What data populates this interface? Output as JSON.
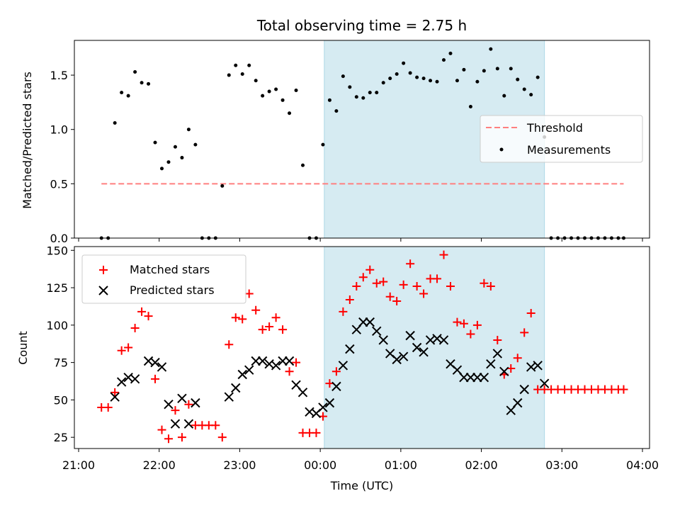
{
  "title": "Total observing time = 2.75 h",
  "xlabel": "Time (UTC)",
  "x_ticks": [
    "21:00",
    "22:00",
    "23:00",
    "00:00",
    "01:00",
    "02:00",
    "03:00",
    "04:00"
  ],
  "colors": {
    "threshold": "#ff7f7f",
    "measurement": "#000000",
    "matched": "#ff0000",
    "predicted": "#000000",
    "shade": "#add8e6"
  },
  "chart_data": [
    {
      "type": "scatter",
      "ylabel": "Matched/Predicted stars",
      "ylim": [
        0,
        1.82
      ],
      "y_ticks": [
        "0.0",
        "0.5",
        "1.0",
        "1.5"
      ],
      "legend": {
        "placement": "center-right",
        "entries": [
          "Threshold",
          "Measurements"
        ]
      },
      "shaded_interval": [
        "00:03",
        "02:47"
      ],
      "threshold": {
        "y": 0.5,
        "x_start": "21:17",
        "x_end": "03:46"
      },
      "series": [
        {
          "name": "Measurements",
          "x": [
            "21:17",
            "21:22",
            "21:27",
            "21:32",
            "21:37",
            "21:42",
            "21:47",
            "21:52",
            "21:57",
            "22:02",
            "22:07",
            "22:12",
            "22:17",
            "22:22",
            "22:27",
            "22:32",
            "22:37",
            "22:42",
            "22:47",
            "22:52",
            "22:57",
            "23:02",
            "23:07",
            "23:12",
            "23:17",
            "23:22",
            "23:27",
            "23:32",
            "23:37",
            "23:42",
            "23:47",
            "23:52",
            "23:57",
            "00:02",
            "00:07",
            "00:12",
            "00:17",
            "00:22",
            "00:27",
            "00:32",
            "00:37",
            "00:42",
            "00:47",
            "00:52",
            "00:57",
            "01:02",
            "01:07",
            "01:12",
            "01:17",
            "01:22",
            "01:27",
            "01:32",
            "01:37",
            "01:42",
            "01:47",
            "01:52",
            "01:57",
            "02:02",
            "02:07",
            "02:12",
            "02:17",
            "02:22",
            "02:27",
            "02:32",
            "02:37",
            "02:42",
            "02:47",
            "02:52",
            "02:57",
            "03:02",
            "03:07",
            "03:12",
            "03:17",
            "03:22",
            "03:27",
            "03:32",
            "03:37",
            "03:42",
            "03:46"
          ],
          "y": [
            0,
            0,
            1.06,
            1.34,
            1.31,
            1.53,
            1.43,
            1.42,
            0.88,
            0.64,
            0.7,
            0.84,
            0.74,
            1.0,
            0.86,
            0,
            0,
            0,
            0.48,
            1.5,
            1.59,
            1.51,
            1.59,
            1.45,
            1.31,
            1.35,
            1.37,
            1.27,
            1.15,
            1.36,
            0.67,
            0,
            0,
            0.86,
            1.27,
            1.17,
            1.49,
            1.39,
            1.3,
            1.29,
            1.34,
            1.34,
            1.43,
            1.47,
            1.51,
            1.61,
            1.52,
            1.48,
            1.47,
            1.45,
            1.44,
            1.64,
            1.7,
            1.45,
            1.55,
            1.21,
            1.44,
            1.54,
            1.74,
            1.56,
            1.31,
            1.56,
            1.46,
            1.37,
            1.32,
            1.48,
            0.93,
            0,
            0,
            0,
            0,
            0,
            0,
            0,
            0,
            0,
            0,
            0,
            0
          ]
        }
      ]
    },
    {
      "type": "scatter",
      "ylabel": "Count",
      "ylim": [
        17.5,
        152.5
      ],
      "y_ticks": [
        "25",
        "50",
        "75",
        "100",
        "125",
        "150"
      ],
      "legend": {
        "placement": "top-left",
        "entries": [
          "Matched stars",
          "Predicted stars"
        ]
      },
      "shaded_interval": [
        "00:03",
        "02:47"
      ],
      "series": [
        {
          "name": "Matched stars",
          "x": [
            "21:17",
            "21:22",
            "21:27",
            "21:32",
            "21:37",
            "21:42",
            "21:47",
            "21:52",
            "21:57",
            "22:02",
            "22:07",
            "22:12",
            "22:17",
            "22:22",
            "22:27",
            "22:32",
            "22:37",
            "22:42",
            "22:47",
            "22:52",
            "22:57",
            "23:02",
            "23:07",
            "23:12",
            "23:17",
            "23:22",
            "23:27",
            "23:32",
            "23:37",
            "23:42",
            "23:47",
            "23:52",
            "23:57",
            "00:02",
            "00:07",
            "00:12",
            "00:17",
            "00:22",
            "00:27",
            "00:32",
            "00:37",
            "00:42",
            "00:47",
            "00:52",
            "00:57",
            "01:02",
            "01:07",
            "01:12",
            "01:17",
            "01:22",
            "01:27",
            "01:32",
            "01:37",
            "01:42",
            "01:47",
            "01:52",
            "01:57",
            "02:02",
            "02:07",
            "02:12",
            "02:17",
            "02:22",
            "02:27",
            "02:32",
            "02:37",
            "02:42",
            "02:47",
            "02:52",
            "02:57",
            "03:02",
            "03:07",
            "03:12",
            "03:17",
            "03:22",
            "03:27",
            "03:32",
            "03:37",
            "03:42",
            "03:46"
          ],
          "y": [
            45,
            45,
            55,
            83,
            85,
            98,
            109,
            106,
            64,
            30,
            24,
            43,
            25,
            47,
            33,
            33,
            33,
            33,
            25,
            87,
            105,
            104,
            121,
            110,
            97,
            99,
            105,
            97,
            69,
            75,
            28,
            28,
            28,
            39,
            61,
            69,
            109,
            117,
            126,
            132,
            137,
            128,
            129,
            119,
            116,
            127,
            141,
            126,
            121,
            131,
            131,
            147,
            126,
            102,
            101,
            94,
            100,
            128,
            126,
            90,
            67,
            71,
            78,
            95,
            108,
            57,
            57,
            57,
            57,
            57,
            57,
            57,
            57,
            57,
            57,
            57,
            57,
            57,
            57
          ]
        },
        {
          "name": "Predicted stars",
          "x": [
            "21:27",
            "21:32",
            "21:37",
            "21:42",
            "21:52",
            "21:57",
            "22:02",
            "22:07",
            "22:12",
            "22:17",
            "22:22",
            "22:27",
            "22:52",
            "22:57",
            "23:02",
            "23:07",
            "23:12",
            "23:17",
            "23:22",
            "23:27",
            "23:32",
            "23:37",
            "23:42",
            "23:47",
            "23:52",
            "23:57",
            "00:02",
            "00:07",
            "00:12",
            "00:17",
            "00:22",
            "00:27",
            "00:32",
            "00:37",
            "00:42",
            "00:47",
            "00:52",
            "00:57",
            "01:02",
            "01:07",
            "01:12",
            "01:17",
            "01:22",
            "01:27",
            "01:32",
            "01:37",
            "01:42",
            "01:47",
            "01:52",
            "01:57",
            "02:02",
            "02:07",
            "02:12",
            "02:17",
            "02:22",
            "02:27",
            "02:32",
            "02:37",
            "02:42",
            "02:47"
          ],
          "y": [
            52,
            62,
            65,
            64,
            76,
            75,
            72,
            47,
            34,
            51,
            34,
            48,
            52,
            58,
            67,
            70,
            76,
            76,
            74,
            73,
            76,
            76,
            60,
            55,
            42,
            41,
            45,
            48,
            59,
            73,
            84,
            97,
            102,
            102,
            96,
            90,
            81,
            77,
            79,
            93,
            85,
            82,
            90,
            91,
            90,
            74,
            70,
            65,
            65,
            65,
            65,
            74,
            81,
            69,
            43,
            48,
            57,
            72,
            73,
            61
          ]
        }
      ]
    }
  ]
}
